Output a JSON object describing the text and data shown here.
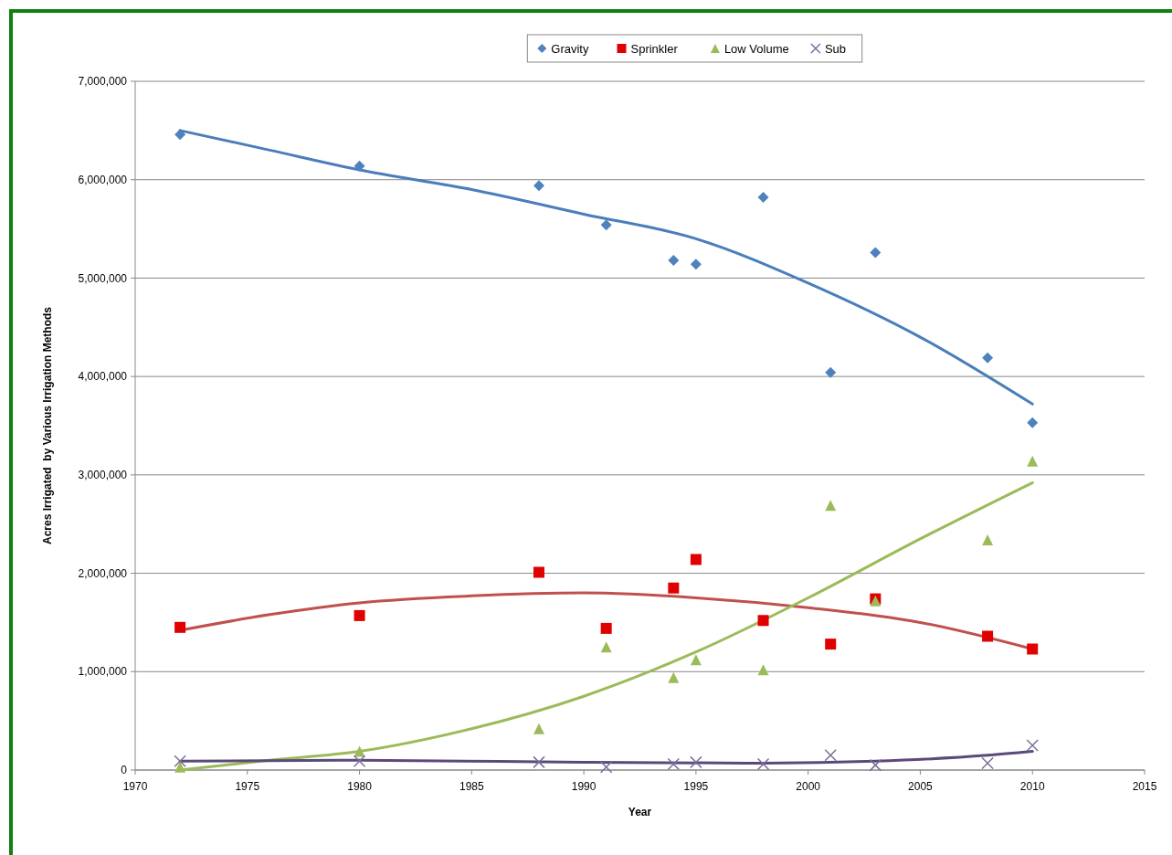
{
  "chart_data": {
    "type": "scatter",
    "xlabel": "Year",
    "ylabel": "Acres Irrigated  by Various Irrigation Methods",
    "xlim": [
      1970,
      2015
    ],
    "xticks": [
      1970,
      1975,
      1980,
      1985,
      1990,
      1995,
      2000,
      2005,
      2010,
      2015
    ],
    "ylim": [
      0,
      7000000
    ],
    "yticks": [
      {
        "value": 0,
        "label": "0"
      },
      {
        "value": 1000000,
        "label": "1,000,000"
      },
      {
        "value": 2000000,
        "label": "2,000,000"
      },
      {
        "value": 3000000,
        "label": "3,000,000"
      },
      {
        "value": 4000000,
        "label": "4,000,000"
      },
      {
        "value": 5000000,
        "label": "5,000,000"
      },
      {
        "value": 6000000,
        "label": "6,000,000"
      },
      {
        "value": 7000000,
        "label": "7,000,000"
      }
    ],
    "grid": "y",
    "legend": "top",
    "x": [
      1972,
      1980,
      1988,
      1991,
      1994,
      1995,
      1998,
      2001,
      2003,
      2008,
      2010
    ],
    "series": [
      {
        "name": "Gravity",
        "color": "#4f81bd",
        "marker": "diamond",
        "values": [
          6460000,
          6140000,
          5940000,
          5540000,
          5180000,
          5140000,
          5820000,
          4040000,
          5260000,
          4190000,
          3530000
        ]
      },
      {
        "name": "Sprinkler",
        "color": "#e00000",
        "marker": "square",
        "values": [
          1450000,
          1570000,
          2010000,
          1440000,
          1850000,
          2140000,
          1520000,
          1280000,
          1740000,
          1360000,
          1230000
        ]
      },
      {
        "name": "Low Volume",
        "color": "#9bbb59",
        "marker": "triangle",
        "values": [
          30000,
          190000,
          420000,
          1250000,
          940000,
          1120000,
          1020000,
          2690000,
          1720000,
          2340000,
          3140000
        ]
      },
      {
        "name": "Sub",
        "color": "#7a6e9a",
        "marker": "cross",
        "values": [
          90000,
          90000,
          80000,
          30000,
          60000,
          80000,
          60000,
          150000,
          50000,
          70000,
          250000
        ]
      },
      {
        "type": "line",
        "color": "#4a7ebb",
        "x": [
          1972,
          1976,
          1980,
          1985,
          1990,
          1995,
          2000,
          2005,
          2010
        ],
        "values": [
          6500000,
          6300000,
          6100000,
          5900000,
          5650000,
          5400000,
          4950000,
          4400000,
          3720000
        ]
      },
      {
        "type": "line",
        "color": "#c0504d",
        "x": [
          1972,
          1976,
          1980,
          1985,
          1990,
          1995,
          2000,
          2005,
          2010
        ],
        "values": [
          1420000,
          1580000,
          1700000,
          1770000,
          1800000,
          1750000,
          1650000,
          1500000,
          1230000
        ]
      },
      {
        "type": "line",
        "color": "#9bbb59",
        "x": [
          1972,
          1976,
          1980,
          1985,
          1990,
          1995,
          2000,
          2005,
          2010
        ],
        "values": [
          0,
          100000,
          190000,
          420000,
          750000,
          1200000,
          1750000,
          2350000,
          2920000
        ]
      },
      {
        "type": "line",
        "color": "#5a4a7a",
        "x": [
          1972,
          1980,
          1990,
          1998,
          2003,
          2008,
          2010
        ],
        "values": [
          90000,
          100000,
          80000,
          70000,
          90000,
          150000,
          190000
        ]
      }
    ]
  }
}
